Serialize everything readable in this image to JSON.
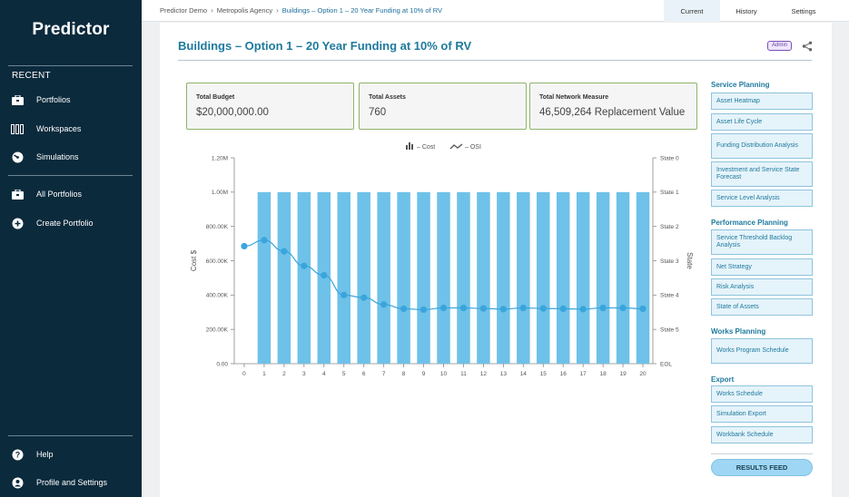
{
  "app": {
    "logo": "Predictor"
  },
  "sidebar": {
    "recent_heading": "RECENT",
    "recent_items": [
      {
        "label": "Portfolios",
        "icon": "briefcase-icon"
      },
      {
        "label": "Workspaces",
        "icon": "columns-icon"
      },
      {
        "label": "Simulations",
        "icon": "gauge-icon"
      }
    ],
    "portfolio_items": [
      {
        "label": "All Portfolios",
        "icon": "briefcase-icon"
      },
      {
        "label": "Create Portfolio",
        "icon": "plus-circle-icon"
      }
    ],
    "bottom_items": [
      {
        "label": "Help",
        "icon": "help-icon"
      },
      {
        "label": "Profile and Settings",
        "icon": "user-icon"
      }
    ]
  },
  "breadcrumb": [
    "Predictor Demo",
    "Metropolis Agency",
    "Buildings – Option 1 – 20 Year Funding at 10% of RV"
  ],
  "top_tabs": {
    "current": "Current",
    "history": "History",
    "settings": "Settings"
  },
  "page": {
    "title": "Buildings – Option 1 – 20 Year Funding at 10% of RV",
    "badge": "Admin"
  },
  "kpis": {
    "budget": {
      "label": "Total Budget",
      "value": "$20,000,000.00"
    },
    "assets": {
      "label": "Total Assets",
      "value": "760"
    },
    "network": {
      "label": "Total Network Measure",
      "value": "46,509,264 Replacement Value"
    }
  },
  "right_nav": {
    "service_planning": {
      "heading": "Service Planning",
      "items": [
        "Asset Heatmap",
        "Asset Life Cycle",
        "Funding Distribution Analysis",
        "Investment and Service State Forecast",
        "Service Level Analysis"
      ]
    },
    "performance_planning": {
      "heading": "Performance Planning",
      "items": [
        "Service Threshold Backlog Analysis",
        "Net Strategy",
        "Risk Analysis",
        "State of Assets"
      ]
    },
    "works_planning": {
      "heading": "Works Planning",
      "items": [
        "Works Program Schedule"
      ]
    },
    "export": {
      "heading": "Export",
      "items": [
        "Works Schedule",
        "Simulation Export",
        "Workbank Schedule"
      ]
    },
    "results_feed": "RESULTS FEED"
  },
  "chart_data": {
    "type": "bar",
    "categories": [
      "0",
      "1",
      "2",
      "3",
      "4",
      "5",
      "6",
      "7",
      "8",
      "9",
      "10",
      "11",
      "12",
      "13",
      "14",
      "15",
      "16",
      "17",
      "18",
      "19",
      "20"
    ],
    "series": [
      {
        "name": "– Cost",
        "kind": "bar",
        "axis": "left",
        "color": "#6ec1e8",
        "values": [
          0,
          1000000,
          1000000,
          1000000,
          1000000,
          1000000,
          1000000,
          1000000,
          1000000,
          1000000,
          1000000,
          1000000,
          1000000,
          1000000,
          1000000,
          1000000,
          1000000,
          1000000,
          1000000,
          1000000,
          1000000
        ]
      },
      {
        "name": "– OSI",
        "kind": "line",
        "axis": "right",
        "color": "#3aa5dc",
        "values": [
          685000,
          720000,
          655000,
          570000,
          515000,
          400000,
          385000,
          345000,
          320000,
          315000,
          325000,
          325000,
          322000,
          318000,
          325000,
          322000,
          320000,
          318000,
          325000,
          325000,
          320000
        ]
      }
    ],
    "ylabel": "Cost $",
    "ylabel_right": "State",
    "ylim": [
      0,
      1200000
    ],
    "y_ticks": [
      "0.00",
      "200.00K",
      "400.00K",
      "600.00K",
      "800.00K",
      "1.00M",
      "1.20M"
    ],
    "y_ticks_right": [
      "EOL",
      "State 5",
      "State 4",
      "State 3",
      "State 2",
      "State 1",
      "State 0"
    ],
    "legend_position": "top-center",
    "grid": false
  }
}
